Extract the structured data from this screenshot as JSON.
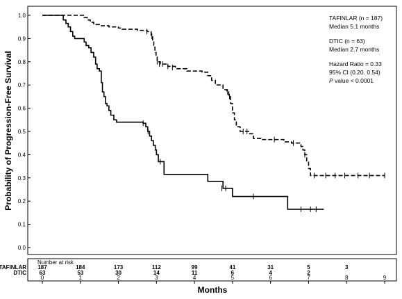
{
  "chart_data": {
    "type": "line",
    "subtype": "kaplan-meier",
    "ylabel": "Probability of Progression-Free Survival",
    "xlabel": "Months",
    "xlim": [
      0,
      9
    ],
    "ylim": [
      0.0,
      1.0
    ],
    "x_ticks": [
      "0",
      "1",
      "2",
      "3",
      "4",
      "5",
      "6",
      "7",
      "8",
      "9"
    ],
    "y_ticks": [
      "0.0",
      "0.1",
      "0.2",
      "0.3",
      "0.4",
      "0.5",
      "0.6",
      "0.7",
      "0.8",
      "0.9",
      "1.0"
    ],
    "legend": {
      "placement": "top-right",
      "lines": [
        [
          "TAFINLAR (n = 187)",
          "Median 5.1 months"
        ],
        [
          "DTIC (n = 63)",
          "Median 2.7 months"
        ],
        [
          "Hazard Ratio = 0.33",
          "95% CI (0.20. 0.54)"
        ]
      ],
      "p_prefix": "P",
      "p_rest": " value < 0.0001"
    },
    "series": [
      {
        "name": "TAFINLAR",
        "style": "dashed",
        "color": "#000000",
        "steps": [
          [
            0,
            1.0
          ],
          [
            1.1,
            0.99
          ],
          [
            1.18,
            0.98
          ],
          [
            1.26,
            0.97
          ],
          [
            1.35,
            0.96
          ],
          [
            1.5,
            0.955
          ],
          [
            1.75,
            0.95
          ],
          [
            2.0,
            0.945
          ],
          [
            2.1,
            0.94
          ],
          [
            2.5,
            0.935
          ],
          [
            2.75,
            0.93
          ],
          [
            2.86,
            0.91
          ],
          [
            2.9,
            0.89
          ],
          [
            2.93,
            0.87
          ],
          [
            2.96,
            0.84
          ],
          [
            2.99,
            0.82
          ],
          [
            3.02,
            0.8
          ],
          [
            3.1,
            0.79
          ],
          [
            3.3,
            0.78
          ],
          [
            3.5,
            0.77
          ],
          [
            3.8,
            0.76
          ],
          [
            4.2,
            0.755
          ],
          [
            4.35,
            0.74
          ],
          [
            4.45,
            0.72
          ],
          [
            4.55,
            0.7
          ],
          [
            4.75,
            0.68
          ],
          [
            4.85,
            0.67
          ],
          [
            4.9,
            0.65
          ],
          [
            4.95,
            0.62
          ],
          [
            5.0,
            0.58
          ],
          [
            5.05,
            0.55
          ],
          [
            5.1,
            0.52
          ],
          [
            5.2,
            0.5
          ],
          [
            5.45,
            0.49
          ],
          [
            5.55,
            0.47
          ],
          [
            5.75,
            0.465
          ],
          [
            6.35,
            0.455
          ],
          [
            6.55,
            0.45
          ],
          [
            6.8,
            0.435
          ],
          [
            6.85,
            0.42
          ],
          [
            6.9,
            0.4
          ],
          [
            6.95,
            0.37
          ],
          [
            7.0,
            0.34
          ],
          [
            7.05,
            0.31
          ],
          [
            9.0,
            0.31
          ]
        ],
        "censor": [
          [
            2.75,
            0.93
          ],
          [
            2.88,
            0.91
          ],
          [
            3.02,
            0.8
          ],
          [
            3.08,
            0.79
          ],
          [
            3.16,
            0.79
          ],
          [
            3.3,
            0.78
          ],
          [
            3.42,
            0.775
          ],
          [
            4.87,
            0.67
          ],
          [
            4.92,
            0.65
          ],
          [
            5.28,
            0.5
          ],
          [
            5.38,
            0.5
          ],
          [
            6.1,
            0.465
          ],
          [
            6.6,
            0.45
          ],
          [
            6.9,
            0.4
          ],
          [
            7.15,
            0.31
          ],
          [
            7.45,
            0.31
          ],
          [
            7.7,
            0.31
          ],
          [
            7.95,
            0.31
          ],
          [
            8.3,
            0.31
          ],
          [
            8.6,
            0.31
          ],
          [
            9.0,
            0.31
          ]
        ]
      },
      {
        "name": "DTIC",
        "style": "solid",
        "color": "#000000",
        "steps": [
          [
            0,
            1.0
          ],
          [
            0.55,
            0.98
          ],
          [
            0.62,
            0.965
          ],
          [
            0.68,
            0.95
          ],
          [
            0.74,
            0.93
          ],
          [
            0.8,
            0.91
          ],
          [
            0.85,
            0.9
          ],
          [
            1.1,
            0.885
          ],
          [
            1.15,
            0.87
          ],
          [
            1.22,
            0.86
          ],
          [
            1.28,
            0.84
          ],
          [
            1.35,
            0.82
          ],
          [
            1.4,
            0.79
          ],
          [
            1.44,
            0.77
          ],
          [
            1.5,
            0.76
          ],
          [
            1.55,
            0.71
          ],
          [
            1.58,
            0.67
          ],
          [
            1.62,
            0.65
          ],
          [
            1.66,
            0.62
          ],
          [
            1.7,
            0.61
          ],
          [
            1.75,
            0.59
          ],
          [
            1.8,
            0.57
          ],
          [
            1.88,
            0.55
          ],
          [
            1.95,
            0.54
          ],
          [
            2.65,
            0.535
          ],
          [
            2.72,
            0.52
          ],
          [
            2.77,
            0.5
          ],
          [
            2.82,
            0.48
          ],
          [
            2.87,
            0.46
          ],
          [
            2.92,
            0.44
          ],
          [
            2.97,
            0.42
          ],
          [
            3.0,
            0.4
          ],
          [
            3.05,
            0.37
          ],
          [
            3.2,
            0.315
          ],
          [
            4.35,
            0.285
          ],
          [
            4.75,
            0.255
          ],
          [
            5.0,
            0.22
          ],
          [
            6.45,
            0.165
          ],
          [
            7.4,
            0.165
          ]
        ],
        "censor": [
          [
            2.65,
            0.535
          ],
          [
            2.78,
            0.5
          ],
          [
            3.1,
            0.37
          ],
          [
            4.72,
            0.255
          ],
          [
            4.82,
            0.255
          ],
          [
            5.55,
            0.22
          ],
          [
            6.8,
            0.165
          ],
          [
            7.05,
            0.165
          ],
          [
            7.2,
            0.165
          ]
        ]
      }
    ],
    "risk_table": {
      "title": "Number at risk",
      "rows": [
        {
          "label": "TAFINLAR",
          "values": [
            "187",
            "184",
            "173",
            "112",
            "99",
            "41",
            "31",
            "5",
            "3"
          ]
        },
        {
          "label": "DTIC",
          "values": [
            "63",
            "53",
            "30",
            "14",
            "11",
            "6",
            "4",
            "2"
          ]
        }
      ]
    }
  }
}
